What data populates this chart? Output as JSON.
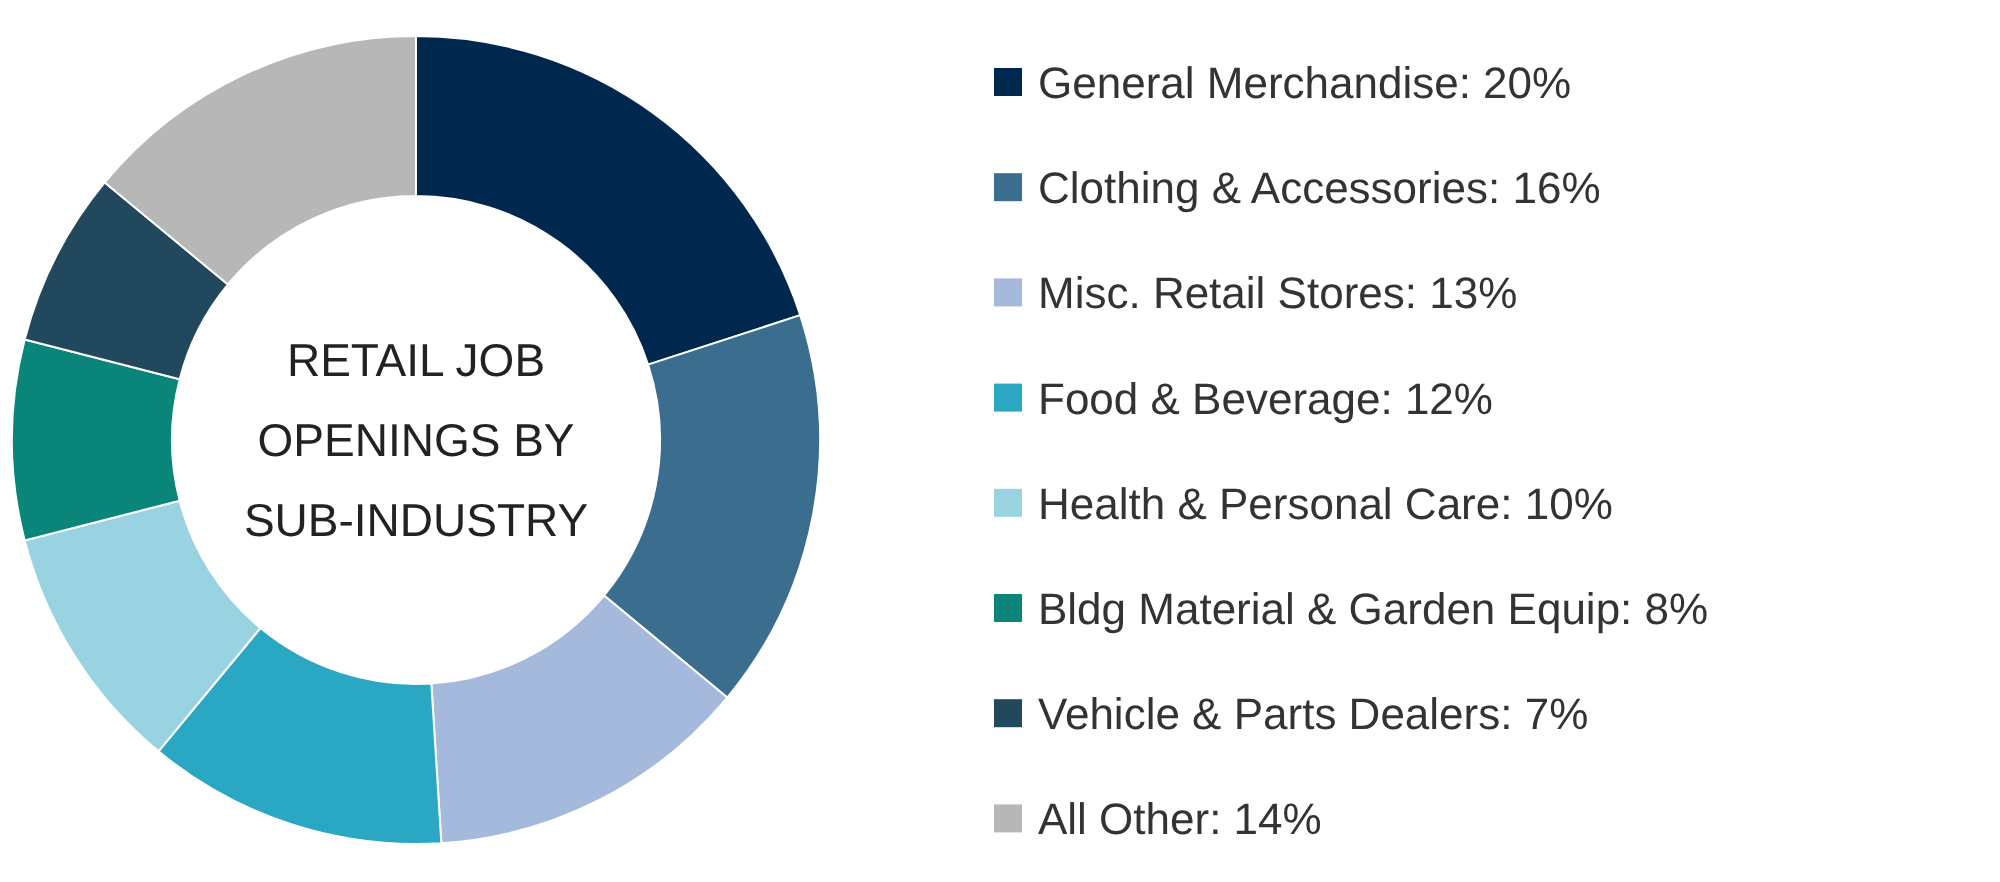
{
  "chart_data": {
    "type": "donut",
    "title": "RETAIL JOB OPENINGS BY SUB-INDUSTRY",
    "categories": [
      "General Merchandise",
      "Clothing & Accessories",
      "Misc. Retail Stores",
      "Food & Beverage",
      "Health & Personal Care",
      "Bldg Material & Garden Equip",
      "Vehicle & Parts Dealers",
      "All Other"
    ],
    "values": [
      20,
      16,
      13,
      12,
      10,
      8,
      7,
      14
    ],
    "value_labels": [
      "20%",
      "16%",
      "13%",
      "12%",
      "10%",
      "8%",
      "7%",
      "14%"
    ],
    "colors": [
      "#00284e",
      "#3a6d8e",
      "#a5b9dd",
      "#2aa8c3",
      "#99d3e2",
      "#0a857a",
      "#22485d",
      "#b7b7b7"
    ],
    "legend": "right"
  }
}
